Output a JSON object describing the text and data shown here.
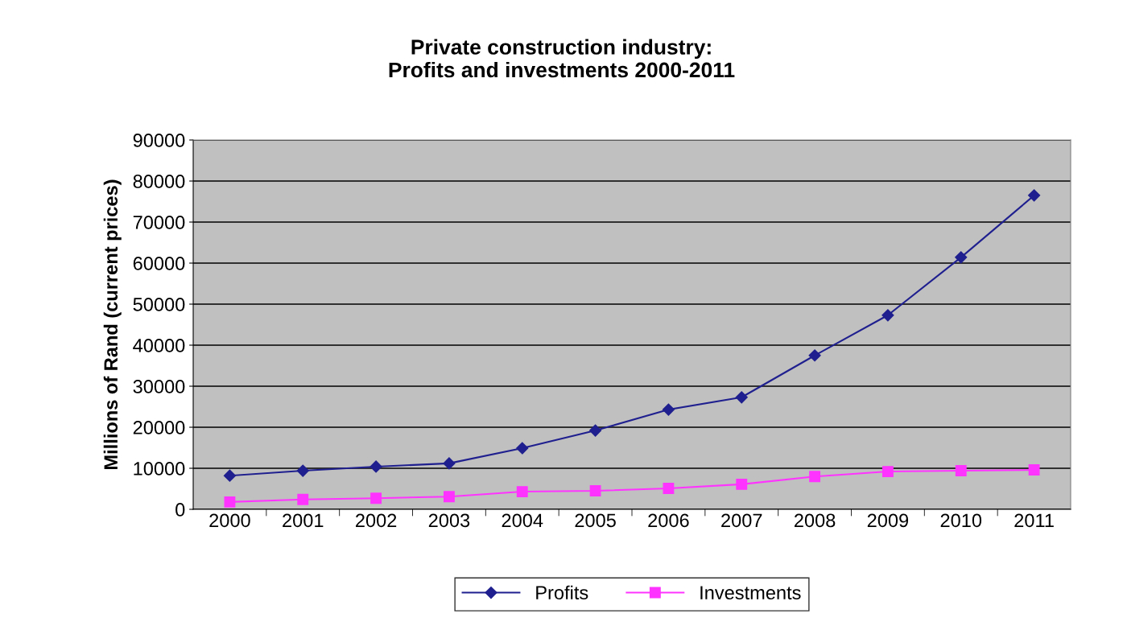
{
  "chart_data": {
    "type": "line",
    "title": "Private construction industry:\nProfits and investments 2000-2011",
    "ylabel": "Millions of Rand (current prices)",
    "categories": [
      "2000",
      "2001",
      "2002",
      "2003",
      "2004",
      "2005",
      "2006",
      "2007",
      "2008",
      "2009",
      "2010",
      "2011"
    ],
    "series": [
      {
        "name": "Profits",
        "color": "#1f1f8f",
        "marker": "diamond",
        "values": [
          8200,
          9400,
          10400,
          11200,
          14900,
          19200,
          24300,
          27300,
          37500,
          47300,
          61400,
          76500
        ]
      },
      {
        "name": "Investments",
        "color": "#ff33ff",
        "marker": "square",
        "values": [
          1800,
          2400,
          2700,
          3100,
          4300,
          4500,
          5100,
          6100,
          8000,
          9200,
          9400,
          9600
        ]
      }
    ],
    "ylim": [
      0,
      90000
    ],
    "yticks": [
      0,
      10000,
      20000,
      30000,
      40000,
      50000,
      60000,
      70000,
      80000,
      90000
    ],
    "grid": "y",
    "legend": "bottom"
  }
}
